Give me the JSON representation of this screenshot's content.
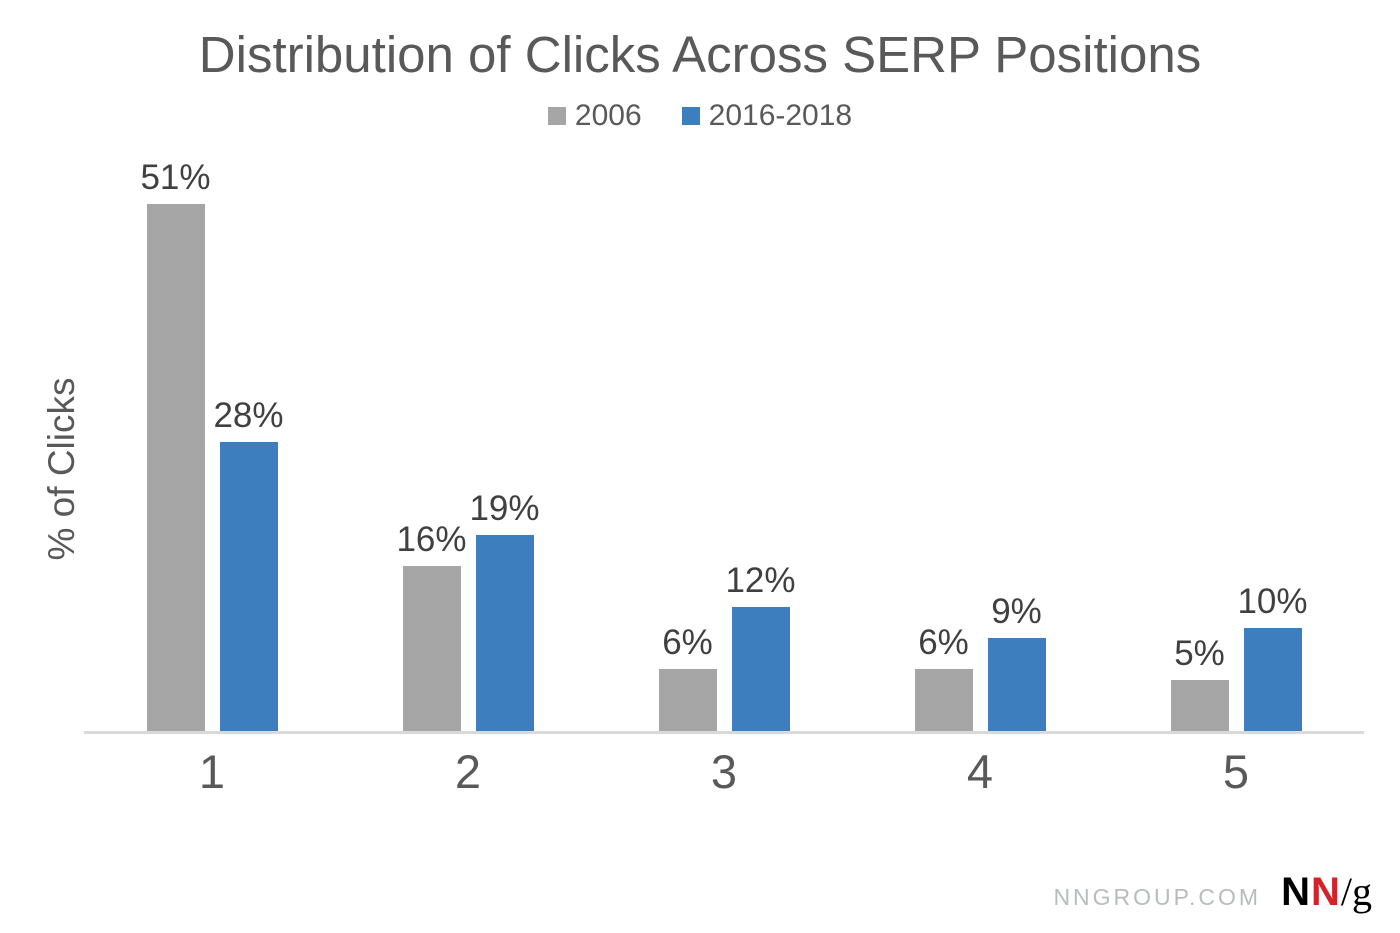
{
  "title": "Distribution of Clicks Across SERP Positions",
  "legend": {
    "items": [
      {
        "label": "2006",
        "color": "#a6a6a6"
      },
      {
        "label": "2016-2018",
        "color": "#3d7ebf"
      }
    ]
  },
  "y_axis_label": "% of Clicks",
  "footer": {
    "site": "NNGROUP.COM",
    "logo": {
      "n_black": "N",
      "n_red": "N",
      "slash_g": "/g"
    }
  },
  "colors": {
    "series_2006": "#a6a6a6",
    "series_2016_2018": "#3d7ebf",
    "heading_text": "#595959",
    "value_label_text": "#404040",
    "axis_line": "#d9d9d9",
    "footer_site_text": "#b9bcbf",
    "logo_red": "#d3222a",
    "logo_black": "#000000"
  },
  "chart_data": {
    "type": "bar",
    "title": "Distribution of Clicks Across SERP Positions",
    "categories": [
      "1",
      "2",
      "3",
      "4",
      "5"
    ],
    "series": [
      {
        "name": "2006",
        "color": "#a6a6a6",
        "values": [
          51,
          16,
          6,
          6,
          5
        ],
        "labels": [
          "51%",
          "16%",
          "6%",
          "6%",
          "5%"
        ]
      },
      {
        "name": "2016-2018",
        "color": "#3d7ebf",
        "values": [
          28,
          19,
          12,
          9,
          10
        ],
        "labels": [
          "28%",
          "19%",
          "12%",
          "9%",
          "10%"
        ]
      }
    ],
    "xlabel": "",
    "ylabel": "% of Clicks",
    "ylim": [
      0,
      54
    ],
    "grid": false,
    "legend_position": "top",
    "value_labels": true
  }
}
